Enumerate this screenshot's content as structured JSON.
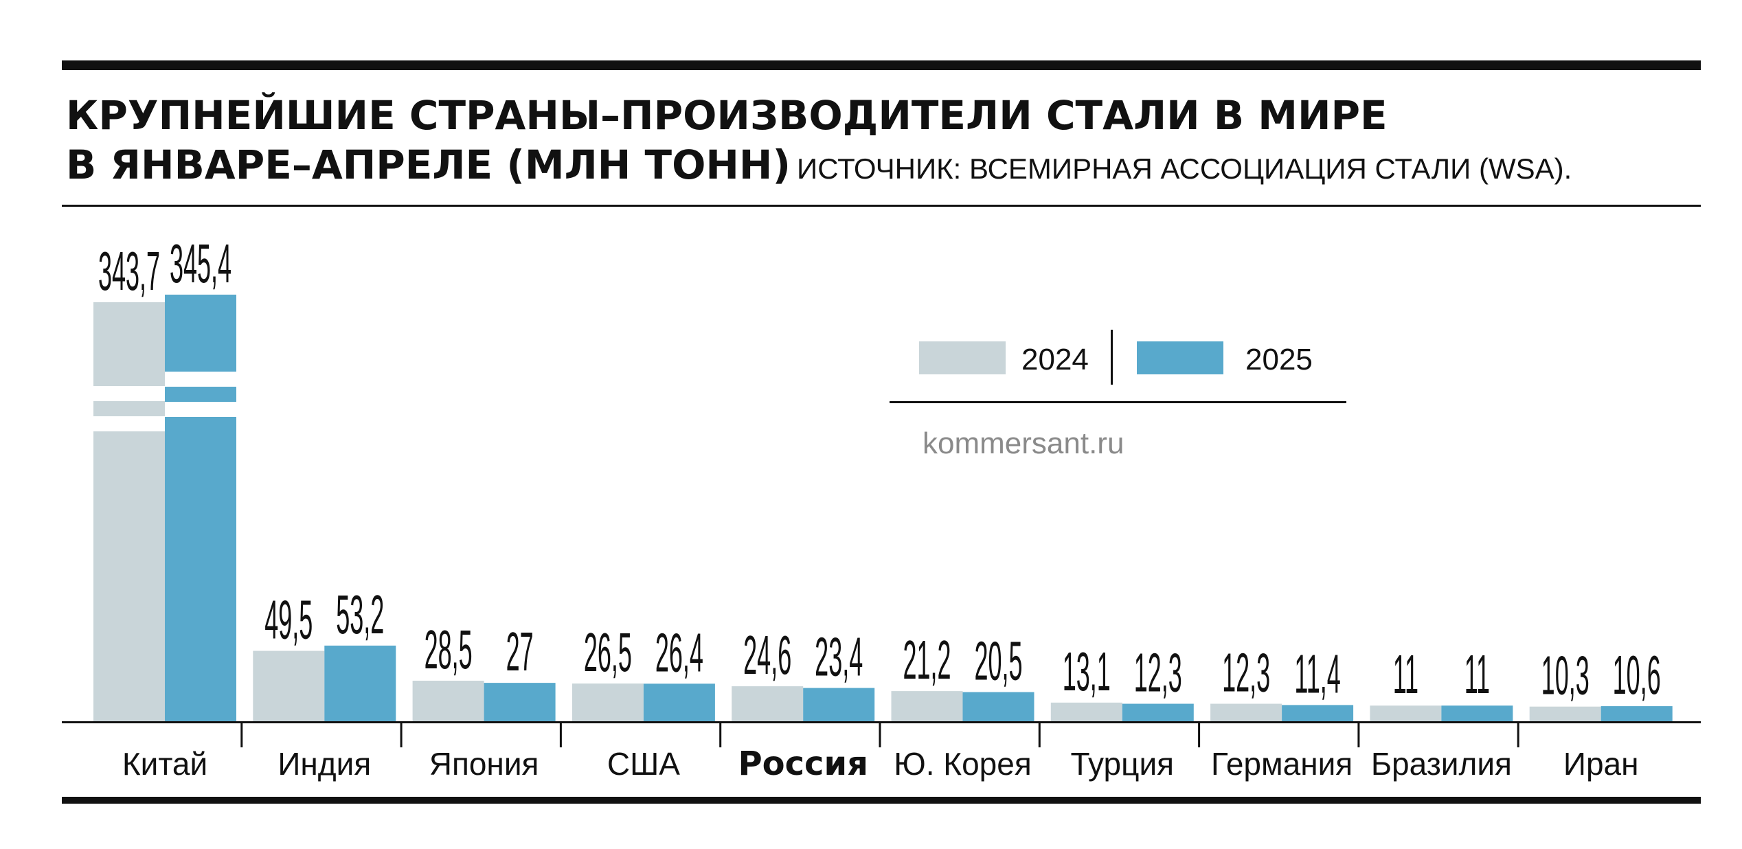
{
  "title_line1": "КРУПНЕЙШИЕ СТРАНЫ–ПРОИЗВОДИТЕЛИ СТАЛИ В МИРЕ",
  "title_line2": "В ЯНВАРЕ–АПРЕЛЕ (МЛН ТОНН)",
  "source": "ИСТОЧНИК: ВСЕМИРНАЯ АССОЦИАЦИЯ СТАЛИ (WSA).",
  "watermark": "kommersant.ru",
  "colors": {
    "y2024": "#c9d5d9",
    "y2025": "#58a9cc",
    "ink": "#111111"
  },
  "chart_data": {
    "type": "bar",
    "categories": [
      "Китай",
      "Индия",
      "Япония",
      "США",
      "Россия",
      "Ю. Корея",
      "Турция",
      "Германия",
      "Бразилия",
      "Иран"
    ],
    "highlight_category": "Россия",
    "series": [
      {
        "name": "2024",
        "values": [
          343.7,
          49.5,
          28.5,
          26.5,
          24.6,
          21.2,
          13.1,
          12.3,
          11,
          10.3
        ],
        "labels": [
          "343,7",
          "49,5",
          "28,5",
          "26,5",
          "24,6",
          "21,2",
          "13,1",
          "12,3",
          "11",
          "10,3"
        ]
      },
      {
        "name": "2025",
        "values": [
          345.4,
          53.2,
          27,
          26.4,
          23.4,
          20.5,
          12.3,
          11.4,
          11,
          10.6
        ],
        "labels": [
          "345,4",
          "53,2",
          "27",
          "26,4",
          "23,4",
          "20,5",
          "12,3",
          "11,4",
          "11",
          "10,6"
        ]
      }
    ],
    "axis_break": true,
    "legend": "top-right"
  }
}
